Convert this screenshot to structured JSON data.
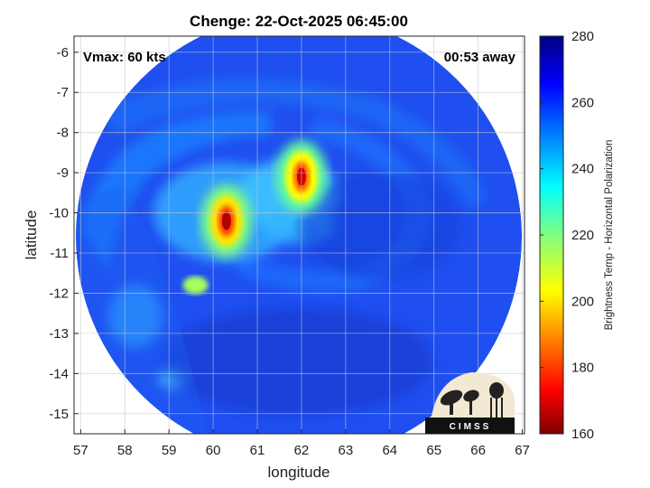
{
  "chart_data": {
    "type": "heatmap",
    "title": "Chenge: 22-Oct-2025 06:45:00",
    "xlabel": "longitude",
    "ylabel": "latitude",
    "xlim": [
      56.85,
      67.05
    ],
    "ylim": [
      -15.5,
      -5.6
    ],
    "xticks": [
      "57",
      "58",
      "59",
      "60",
      "61",
      "62",
      "63",
      "64",
      "65",
      "66",
      "67"
    ],
    "yticks": [
      "-6",
      "-7",
      "-8",
      "-9",
      "-10",
      "-11",
      "-12",
      "-13",
      "-14",
      "-15"
    ],
    "grid": true,
    "storm_center": [
      62.0,
      -9.6
    ],
    "colorbar": {
      "label": "Brightness Temp - Horizontal Polarization",
      "min": 160,
      "max": 280,
      "ticks": [
        "160",
        "180",
        "200",
        "220",
        "240",
        "260",
        "280"
      ],
      "colormap": "jet"
    },
    "annotations": {
      "vmax": "Vmax: 60 kts",
      "time_away": "00:53 away"
    },
    "features": [
      {
        "name": "cold core west",
        "lon": 60.3,
        "lat": -10.2,
        "value": 165
      },
      {
        "name": "cold core north-east",
        "lon": 62.0,
        "lat": -9.1,
        "value": 168
      },
      {
        "name": "outer band",
        "lon": 59.6,
        "lat": -11.8,
        "value": 215
      },
      {
        "name": "background",
        "value": 258
      }
    ]
  },
  "logo": {
    "text": "CIMSS",
    "background": "#f3e9d2",
    "bar_color": "#111111"
  }
}
